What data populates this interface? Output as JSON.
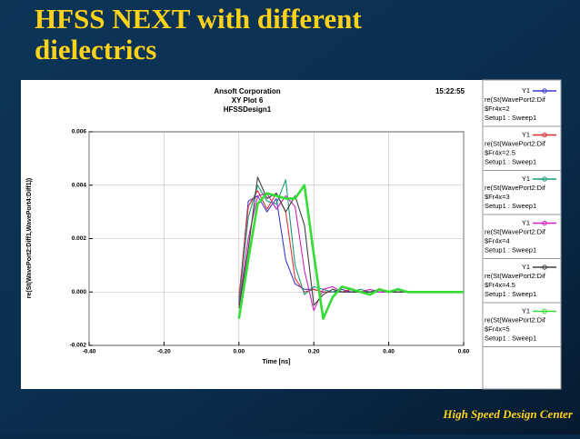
{
  "slide": {
    "title_line1": "HFSS NEXT with different",
    "title_line2": "dielectrics",
    "footer": "High Speed Design Center"
  },
  "chart_data": {
    "type": "line",
    "company": "Ansoft Corporation",
    "title": "XY Plot 6",
    "subtitle": "HFSSDesign1",
    "timestamp": "15:22:55",
    "x_label": "Time [ns]",
    "y_label": "re(St(WavePort2:Diff1,WavePort4:Diff1))",
    "legend_axis": "Y1",
    "legend_expr": "re(St(WavePort2:Dif",
    "legend_setup": "Setup1 : Sweep1",
    "grid": true,
    "xlim": [
      -0.4,
      0.6
    ],
    "xticks": [
      {
        "value": -0.4,
        "label": "-0.40"
      },
      {
        "value": -0.2,
        "label": "-0.20"
      },
      {
        "value": 0,
        "label": "0.00"
      },
      {
        "value": 0.2,
        "label": "0.20"
      },
      {
        "value": 0.4,
        "label": "0.40"
      },
      {
        "value": 0.6,
        "label": "0.60"
      }
    ],
    "ylim": [
      -0.002,
      0.006
    ],
    "yticks": [
      -0.002,
      {
        "value": 0,
        "label": "0.000"
      },
      0.002,
      0.004,
      0.006
    ],
    "x": [
      0,
      0.025,
      0.05,
      0.075,
      0.1,
      0.125,
      0.15,
      0.175,
      0.2,
      0.225,
      0.25,
      0.275,
      0.3,
      0.325,
      0.35,
      0.375,
      0.4,
      0.425,
      0.45,
      0.475,
      0.5,
      0.525,
      0.55,
      0.575,
      0.6
    ],
    "series": [
      {
        "name": "$Fr4x=2",
        "color": "#3b3bd0",
        "values": [
          -0.0003,
          0.0034,
          0.0036,
          0.003,
          0.0035,
          0.0012,
          0.0003,
          0.0001,
          0.0001,
          0,
          0,
          0.0001,
          0,
          0,
          0,
          0,
          0,
          0,
          0,
          0,
          0,
          0,
          0,
          0,
          0
        ]
      },
      {
        "name": "$Fr4x=2.5",
        "color": "#e03030",
        "values": [
          -0.0002,
          0.0032,
          0.0038,
          0.0031,
          0.0037,
          0.003,
          0.0005,
          0,
          0.0001,
          0,
          0,
          0,
          0.0001,
          0,
          0,
          0,
          0,
          0,
          0,
          0,
          0,
          0,
          0,
          0,
          0
        ]
      },
      {
        "name": "$Fr4x=3",
        "color": "#1a9a7a",
        "values": [
          -0.0004,
          0.0028,
          0.004,
          0.0034,
          0.0033,
          0.0042,
          0.001,
          -0.0001,
          0.0002,
          0.0001,
          0,
          0,
          0,
          0.0001,
          0,
          0,
          0,
          0,
          0,
          0,
          0,
          0,
          0,
          0,
          0
        ]
      },
      {
        "name": "$Fr4x=4",
        "color": "#d020c0",
        "values": [
          -0.0005,
          0.002,
          0.0036,
          0.0037,
          0.0031,
          0.0036,
          0.0032,
          0.0008,
          -0.0007,
          0.0001,
          0.0002,
          0,
          0,
          0,
          0.0001,
          0,
          0,
          0,
          0,
          0,
          0,
          0,
          0,
          0,
          0
        ]
      },
      {
        "name": "$Fr4x=4.5",
        "color": "#404040",
        "values": [
          -0.0006,
          0.0016,
          0.0043,
          0.0035,
          0.0037,
          0.003,
          0.0036,
          0.0025,
          -0.0005,
          -0.0001,
          0.0001,
          0,
          0,
          0,
          0,
          0.0001,
          0,
          0,
          0,
          0,
          0,
          0,
          0,
          0,
          0
        ]
      },
      {
        "name": "$Fr4x=5",
        "color": "#33dd33",
        "values": [
          -0.001,
          0.0012,
          0.0033,
          0.0037,
          0.0036,
          0.0035,
          0.0035,
          0.004,
          0.0014,
          -0.001,
          -0.0002,
          0.0002,
          0.0001,
          0,
          -0.0001,
          0.0001,
          0,
          0.0001,
          0,
          0,
          0,
          0,
          0,
          0,
          0
        ]
      }
    ]
  }
}
